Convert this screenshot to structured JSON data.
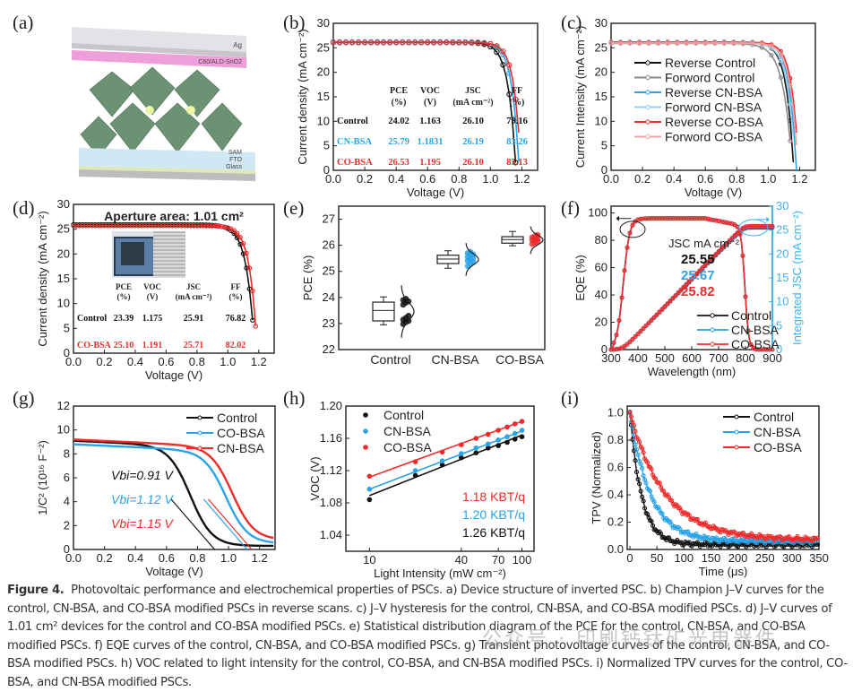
{
  "figure": {
    "panels": {
      "a": {
        "label": "(a)",
        "layers": [
          "Ag",
          "C60/ALD-SnO2",
          "SAM",
          "FTO",
          "Glass"
        ]
      },
      "b": {
        "label": "(b)"
      },
      "c": {
        "label": "(c)"
      },
      "d": {
        "label": "(d)"
      },
      "e": {
        "label": "(e)"
      },
      "f": {
        "label": "(f)"
      },
      "g": {
        "label": "(g)"
      },
      "h": {
        "label": "(h)"
      },
      "i": {
        "label": "(i)"
      }
    },
    "caption": {
      "title": "Figure 4.",
      "text": "Photovoltaic performance and electrochemical properties of PSCs. a) Device structure of inverted PSC. b) Champion J–V curves for the control, CN-BSA, and CO-BSA modified PSCs in reverse scans. c) J–V hysteresis for the control, CN-BSA, and CO-BSA modified PSCs. d) J–V curves of 1.01 cm² devices for the control and CO-BSA modified PSCs. e) Statistical distribution diagram of the PCE for the control, CN-BSA, and CO-BSA modified PSCs. f) EQE curves of the control, CN-BSA, and CO-BSA modified PSCs. g) Transient photovoltage curves of the control, CN-BSA, and CO-BSA modified PSCs. h) VOC related to light intensity for the control, CO-BSA, and CN-BSA modified PSCs. i) Normalized TPV curves for the control, CO-BSA, and CN-BSA modified PSCs."
    },
    "watermark": "公众号 · 印刷钙钛矿光电器件"
  },
  "colors": {
    "control": "#111111",
    "control_fwd": "#8a8a8a",
    "cn": "#2aa3e8",
    "cn_fwd": "#8fd0f5",
    "co": "#ee2b2b",
    "co_fwd": "#f4a3a3",
    "axis_right": "#3ab4f2"
  },
  "chart_data": [
    {
      "id": "b",
      "type": "line",
      "title": "",
      "xlabel": "Voltage (V)",
      "ylabel": "Current density (mA cm⁻²)",
      "xlim": [
        0,
        1.3
      ],
      "ylim": [
        0,
        30
      ],
      "xticks": [
        "0.0",
        "0.2",
        "0.4",
        "0.6",
        "0.8",
        "1.0",
        "1.2"
      ],
      "yticks": [
        "0",
        "5",
        "10",
        "15",
        "20",
        "25",
        "30"
      ],
      "series": [
        {
          "name": "Control",
          "color_key": "control",
          "jsc": 26.1,
          "voc": 1.163,
          "knee": 0.9
        },
        {
          "name": "CN-BSA",
          "color_key": "cn",
          "jsc": 26.19,
          "voc": 1.1831,
          "knee": 0.98
        },
        {
          "name": "CO-BSA",
          "color_key": "co",
          "jsc": 26.1,
          "voc": 1.195,
          "knee": 1.02
        }
      ],
      "table": {
        "headers": [
          [
            "PCE",
            "(%)"
          ],
          [
            "VOC",
            "(V)"
          ],
          [
            "JSC",
            "(mA cm⁻²)"
          ],
          [
            "FF",
            "(%)"
          ]
        ],
        "rows": [
          {
            "name": "Control",
            "color_key": "control",
            "values": [
              "24.02",
              "1.163",
              "26.10",
              "79.16"
            ]
          },
          {
            "name": "CN-BSA",
            "color_key": "cn",
            "values": [
              "25.79",
              "1.1831",
              "26.19",
              "83.26"
            ]
          },
          {
            "name": "CO-BSA",
            "color_key": "co",
            "values": [
              "26.53",
              "1.195",
              "26.10",
              "85.13"
            ]
          }
        ]
      }
    },
    {
      "id": "c",
      "type": "line",
      "title": "",
      "xlabel": "Voltage (V)",
      "ylabel": "Current Intensity (mA cm⁻²)",
      "xlim": [
        0,
        1.3
      ],
      "ylim": [
        0,
        30
      ],
      "xticks": [
        "0.0",
        "0.2",
        "0.4",
        "0.6",
        "0.8",
        "1.0",
        "1.2"
      ],
      "yticks": [
        "0",
        "5",
        "10",
        "15",
        "20",
        "25",
        "30"
      ],
      "legend": "upper-left",
      "series": [
        {
          "name": "Reverse Control",
          "color_key": "control",
          "jsc": 26.1,
          "voc": 1.163,
          "knee": 0.92
        },
        {
          "name": "Forword Control",
          "color_key": "control_fwd",
          "jsc": 25.9,
          "voc": 1.155,
          "knee": 0.7
        },
        {
          "name": "Reverse CN-BSA",
          "color_key": "cn",
          "jsc": 26.19,
          "voc": 1.18,
          "knee": 0.98
        },
        {
          "name": "Forword CN-BSA",
          "color_key": "cn_fwd",
          "jsc": 26.0,
          "voc": 1.175,
          "knee": 0.9
        },
        {
          "name": "Reverse CO-BSA",
          "color_key": "co",
          "jsc": 26.1,
          "voc": 1.195,
          "knee": 1.02
        },
        {
          "name": "Forword CO-BSA",
          "color_key": "co_fwd",
          "jsc": 26.0,
          "voc": 1.19,
          "knee": 0.96
        }
      ]
    },
    {
      "id": "d",
      "type": "line",
      "title": "Aperture area: 1.01 cm²",
      "xlabel": "Voltage (V)",
      "ylabel": "Current density (mA cm⁻²)",
      "xlim": [
        0,
        1.3
      ],
      "ylim": [
        0,
        30
      ],
      "xticks": [
        "0.0",
        "0.2",
        "0.4",
        "0.6",
        "0.8",
        "1.0",
        "1.2"
      ],
      "yticks": [
        "0",
        "5",
        "10",
        "15",
        "20",
        "25",
        "30"
      ],
      "series": [
        {
          "name": "Control",
          "color_key": "control",
          "jsc": 25.91,
          "voc": 1.175,
          "knee": 0.85
        },
        {
          "name": "CO-BSA",
          "color_key": "co",
          "jsc": 25.71,
          "voc": 1.191,
          "knee": 0.95
        }
      ],
      "table": {
        "headers": [
          [
            "PCE",
            "(%)"
          ],
          [
            "VOC",
            "(V)"
          ],
          [
            "JSC",
            "(mA cm⁻²)"
          ],
          [
            "FF",
            "(%)"
          ]
        ],
        "rows": [
          {
            "name": "Control",
            "color_key": "control",
            "values": [
              "23.39",
              "1.175",
              "25.91",
              "76.82"
            ]
          },
          {
            "name": "CO-BSA",
            "color_key": "co",
            "values": [
              "25.10",
              "1.191",
              "25.71",
              "82.02"
            ]
          }
        ]
      }
    },
    {
      "id": "e",
      "type": "box",
      "title": "",
      "xlabel": "",
      "ylabel": "PCE (%)",
      "ylim": [
        22,
        27.5
      ],
      "yticks": [
        "22",
        "23",
        "24",
        "25",
        "26",
        "27"
      ],
      "categories": [
        "Control",
        "CN-BSA",
        "CO-BSA"
      ],
      "boxes": [
        {
          "name": "Control",
          "color_key": "control",
          "min": 22.95,
          "q1": 23.1,
          "median": 23.5,
          "q3": 23.82,
          "max": 24.02,
          "points": [
            22.98,
            23.05,
            23.1,
            23.15,
            23.22,
            23.3,
            23.72,
            23.8,
            23.85,
            23.9,
            23.95
          ]
        },
        {
          "name": "CN-BSA",
          "color_key": "cn",
          "min": 25.12,
          "q1": 25.3,
          "median": 25.47,
          "q3": 25.62,
          "max": 25.79,
          "points": [
            25.2,
            25.3,
            25.35,
            25.4,
            25.45,
            25.5,
            25.55,
            25.6,
            25.65,
            25.7,
            25.75
          ]
        },
        {
          "name": "CO-BSA",
          "color_key": "co",
          "min": 25.98,
          "q1": 26.08,
          "median": 26.22,
          "q3": 26.33,
          "max": 26.53,
          "points": [
            26.05,
            26.1,
            26.15,
            26.2,
            26.22,
            26.25,
            26.3,
            26.35,
            26.4
          ]
        }
      ]
    },
    {
      "id": "f",
      "type": "line",
      "title": "",
      "xlabel": "Wavelength (nm)",
      "ylabel": "EQE (%)",
      "ylabel_right": "Integrated JSC (mA cm⁻²)",
      "xlim": [
        300,
        900
      ],
      "ylim": [
        0,
        105
      ],
      "ylim_right": [
        0,
        30
      ],
      "xticks": [
        "300",
        "400",
        "500",
        "600",
        "700",
        "800",
        "900"
      ],
      "yticks": [
        "0",
        "20",
        "40",
        "60",
        "80",
        "100"
      ],
      "yticks_right": [
        "0",
        "5",
        "10",
        "15",
        "20",
        "25",
        "30"
      ],
      "annotation": "JSC mA cm⁻²",
      "jsc_values": [
        {
          "value": "25.55",
          "color_key": "control"
        },
        {
          "value": "25.67",
          "color_key": "cn"
        },
        {
          "value": "25.82",
          "color_key": "co"
        }
      ],
      "series": [
        {
          "name": "Control",
          "color_key": "control",
          "integrated": 25.55
        },
        {
          "name": "CN-BSA",
          "color_key": "cn",
          "integrated": 25.67
        },
        {
          "name": "CO-BSA",
          "color_key": "co",
          "integrated": 25.82
        }
      ]
    },
    {
      "id": "g",
      "type": "line",
      "title": "",
      "xlabel": "Voltage (V)",
      "ylabel": "1/C² (10¹⁶ F⁻²)",
      "xlim": [
        0,
        1.3
      ],
      "ylim": [
        0,
        12
      ],
      "xticks": [
        "0.0",
        "0.2",
        "0.4",
        "0.6",
        "0.8",
        "1.0",
        "1.2"
      ],
      "yticks": [
        "0",
        "2",
        "4",
        "6",
        "8",
        "10",
        "12"
      ],
      "series": [
        {
          "name": "Control",
          "color_key": "control",
          "vbi": 0.91,
          "start": 9.1,
          "plateau_end": 0.5,
          "floor": 0.3
        },
        {
          "name": "CO-BSA",
          "color_key": "cn",
          "vbi": 1.12,
          "start": 8.8,
          "plateau_end": 0.75,
          "floor": 0.5
        },
        {
          "name": "CN-BSA",
          "color_key": "co",
          "vbi": 1.15,
          "start": 9.2,
          "plateau_end": 0.8,
          "floor": 0.8
        }
      ],
      "annotations": [
        {
          "text": "Vbi=0.91 V",
          "color_key": "control"
        },
        {
          "text": "Vbi=1.12 V",
          "color_key": "cn"
        },
        {
          "text": "Vbi=1.15 V",
          "color_key": "co"
        }
      ]
    },
    {
      "id": "h",
      "type": "scatter",
      "title": "",
      "xlabel": "Light Intensity (mW cm⁻²)",
      "ylabel": "VOC (V)",
      "xscale": "log",
      "xlim": [
        7,
        120
      ],
      "ylim": [
        1.02,
        1.2
      ],
      "xticks": [
        "10",
        "40",
        "70",
        "100"
      ],
      "yticks": [
        "1.04",
        "1.08",
        "1.12",
        "1.16",
        "1.20"
      ],
      "x": [
        10,
        20,
        30,
        40,
        50,
        60,
        70,
        80,
        90,
        100
      ],
      "series": [
        {
          "name": "Control",
          "color_key": "control",
          "values": [
            1.084,
            1.114,
            1.127,
            1.136,
            1.142,
            1.148,
            1.151,
            1.155,
            1.159,
            1.162
          ],
          "fit": [
            1.089,
            1.164
          ]
        },
        {
          "name": "CN-BSA",
          "color_key": "cn",
          "values": [
            1.097,
            1.12,
            1.132,
            1.141,
            1.148,
            1.153,
            1.158,
            1.162,
            1.166,
            1.17
          ],
          "fit": [
            1.097,
            1.169
          ]
        },
        {
          "name": "CO-BSA",
          "color_key": "co",
          "values": [
            1.113,
            1.131,
            1.143,
            1.152,
            1.16,
            1.165,
            1.17,
            1.174,
            1.178,
            1.181
          ],
          "fit": [
            1.112,
            1.181
          ]
        }
      ],
      "annotations": [
        {
          "text": "1.18 KBT/q",
          "color_key": "co"
        },
        {
          "text": "1.20 KBT/q",
          "color_key": "cn"
        },
        {
          "text": "1.26 KBT/q",
          "color_key": "control"
        }
      ]
    },
    {
      "id": "i",
      "type": "scatter",
      "title": "",
      "xlabel": "Time (μs)",
      "ylabel": "TPV (Normalized)",
      "xlim": [
        -5,
        350
      ],
      "ylim": [
        0,
        1.05
      ],
      "xticks": [
        "0",
        "50",
        "100",
        "150",
        "200",
        "250",
        "300",
        "350"
      ],
      "yticks": [
        "0.0",
        "0.2",
        "0.4",
        "0.6",
        "0.8",
        "1.0"
      ],
      "series": [
        {
          "name": "Control",
          "color_key": "control",
          "tau": 22,
          "floor": 0.035
        },
        {
          "name": "CN-BSA",
          "color_key": "cn",
          "tau": 38,
          "floor": 0.06
        },
        {
          "name": "CO-BSA",
          "color_key": "co",
          "tau": 65,
          "floor": 0.07
        }
      ]
    }
  ]
}
